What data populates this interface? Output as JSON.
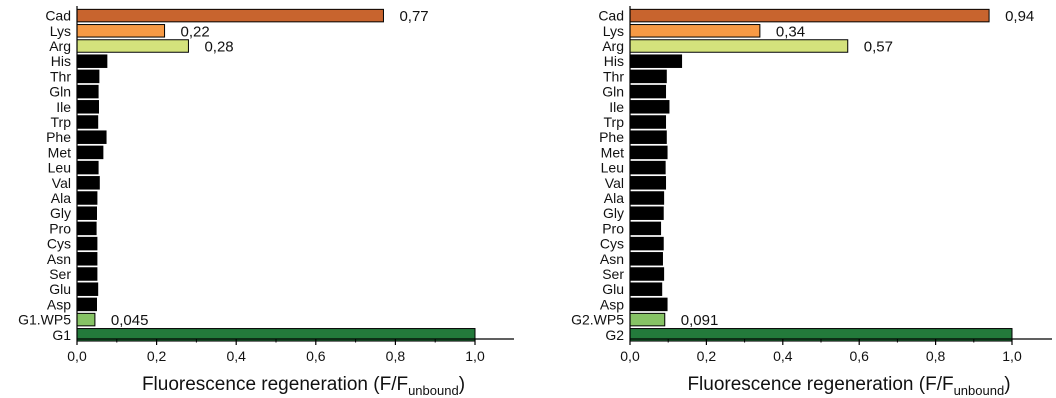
{
  "chart_data": [
    {
      "type": "bar",
      "orientation": "horizontal",
      "categories": [
        "Cad",
        "Lys",
        "Arg",
        "His",
        "Thr",
        "Gln",
        "Ile",
        "Trp",
        "Phe",
        "Met",
        "Leu",
        "Val",
        "Ala",
        "Gly",
        "Pro",
        "Cys",
        "Asn",
        "Ser",
        "Glu",
        "Asp",
        "G1.WP5",
        "G1"
      ],
      "values": [
        0.77,
        0.22,
        0.28,
        0.075,
        0.055,
        0.053,
        0.054,
        0.052,
        0.073,
        0.065,
        0.053,
        0.056,
        0.05,
        0.049,
        0.048,
        0.05,
        0.05,
        0.05,
        0.052,
        0.049,
        0.045,
        1.0
      ],
      "bar_colors": [
        "#c8642e",
        "#f79a45",
        "#d4e27c",
        "#000000",
        "#000000",
        "#000000",
        "#000000",
        "#000000",
        "#000000",
        "#000000",
        "#000000",
        "#000000",
        "#000000",
        "#000000",
        "#000000",
        "#000000",
        "#000000",
        "#000000",
        "#000000",
        "#000000",
        "#86c365",
        "#237a3b"
      ],
      "data_labels": {
        "Cad": "0,77",
        "Lys": "0,22",
        "Arg": "0,28",
        "G1.WP5": "0,045"
      },
      "xticks": [
        "0,0",
        "0,2",
        "0,4",
        "0,6",
        "0,8",
        "1,0"
      ],
      "xlim": [
        0,
        1.1
      ],
      "xlabel_main": "Fluorescence regeneration (F/F",
      "xlabel_sub": "unbound",
      "xlabel_close": ")",
      "grid": false
    },
    {
      "type": "bar",
      "orientation": "horizontal",
      "categories": [
        "Cad",
        "Lys",
        "Arg",
        "His",
        "Thr",
        "Gln",
        "Ile",
        "Trp",
        "Phe",
        "Met",
        "Leu",
        "Val",
        "Ala",
        "Gly",
        "Pro",
        "Cys",
        "Asn",
        "Ser",
        "Glu",
        "Asp",
        "G2.WP5",
        "G2"
      ],
      "values": [
        0.94,
        0.34,
        0.57,
        0.135,
        0.095,
        0.093,
        0.102,
        0.093,
        0.095,
        0.097,
        0.092,
        0.093,
        0.088,
        0.087,
        0.08,
        0.087,
        0.085,
        0.088,
        0.083,
        0.097,
        0.091,
        1.0
      ],
      "bar_colors": [
        "#c8642e",
        "#f79a45",
        "#d4e27c",
        "#000000",
        "#000000",
        "#000000",
        "#000000",
        "#000000",
        "#000000",
        "#000000",
        "#000000",
        "#000000",
        "#000000",
        "#000000",
        "#000000",
        "#000000",
        "#000000",
        "#000000",
        "#000000",
        "#000000",
        "#86c365",
        "#237a3b"
      ],
      "data_labels": {
        "Cad": "0,94",
        "Lys": "0,34",
        "Arg": "0,57",
        "G2.WP5": "0,091"
      },
      "xticks": [
        "0,0",
        "0,2",
        "0,4",
        "0,6",
        "0,8",
        "1,0"
      ],
      "xlim": [
        0,
        1.1
      ],
      "xlabel_main": "Fluorescence regeneration (F/F",
      "xlabel_sub": "unbound",
      "xlabel_close": ")",
      "grid": false
    }
  ]
}
